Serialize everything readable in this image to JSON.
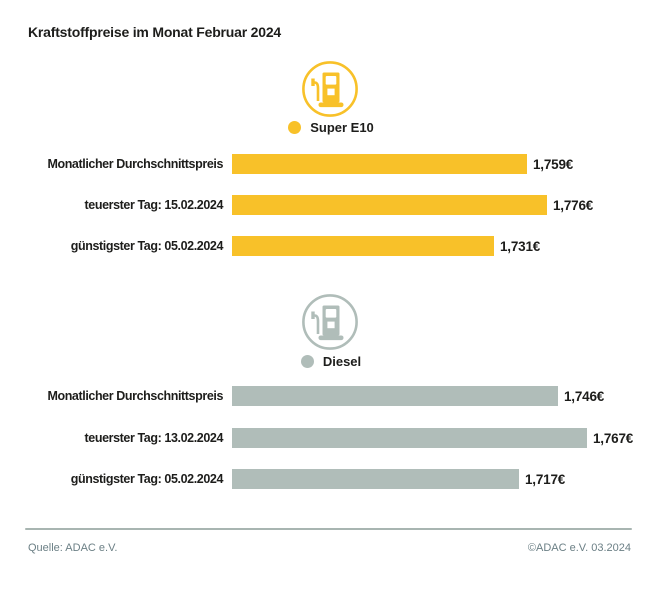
{
  "title": "Kraftstoffpreise im Monat Februar 2024",
  "colors": {
    "super_e10": "#F8C129",
    "diesel": "#B0BDB9",
    "text": "#1D1D1B",
    "footer_text": "#6B7F85",
    "divider": "#A8B5B1",
    "background": "#FFFFFF"
  },
  "chart_data": [
    {
      "type": "bar",
      "title": "Super E10",
      "legend_label": "Super E10",
      "icon": "fuel-pump-icon",
      "color": "#F8C129",
      "categories": [
        "Monatlicher Durchschnittspreis",
        "teuerster Tag: 15.02.2024",
        "günstigster Tag: 05.02.2024"
      ],
      "values": [
        1.759,
        1.776,
        1.731
      ],
      "value_labels": [
        "1,759€",
        "1,776€",
        "1,731€"
      ],
      "xlim": [
        1.508,
        1.776
      ],
      "legend_position": "top-center",
      "grid": false
    },
    {
      "type": "bar",
      "title": "Diesel",
      "legend_label": "Diesel",
      "icon": "fuel-pump-icon",
      "color": "#B0BDB9",
      "categories": [
        "Monatlicher Durchschnittspreis",
        "teuerster Tag: 13.02.2024",
        "günstigster Tag: 05.02.2024"
      ],
      "values": [
        1.746,
        1.767,
        1.717
      ],
      "value_labels": [
        "1,746€",
        "1,767€",
        "1,717€"
      ],
      "xlim": [
        1.506,
        1.767
      ],
      "legend_position": "top-center",
      "grid": false
    }
  ],
  "footer": {
    "source": "Quelle: ADAC e.V.",
    "copyright": "©ADAC e.V. 03.2024"
  }
}
